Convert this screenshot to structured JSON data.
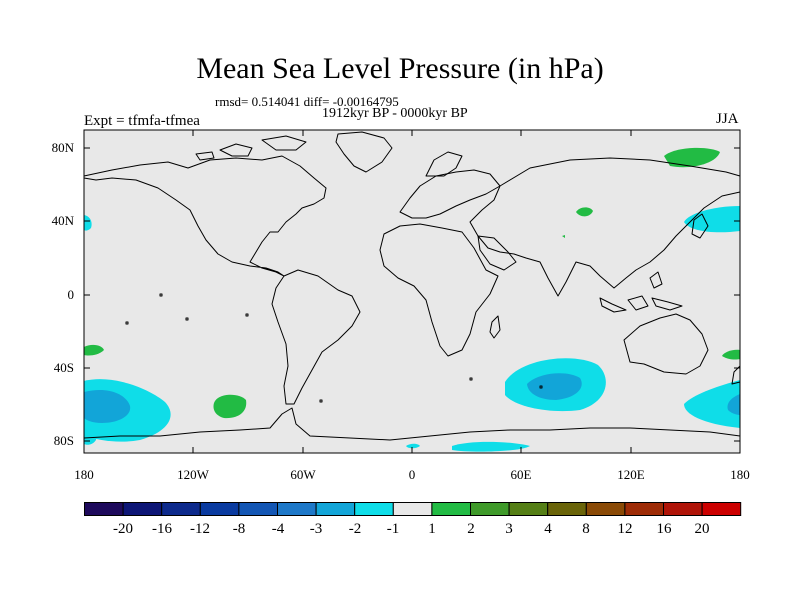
{
  "title": "Mean Sea Level Pressure (in hPa)",
  "stats_line": "rmsd= 0.514041 diff= -0.00164795",
  "period": "1912kyr BP - 0000kyr BP",
  "experiment": "Expt = tfmfa-tfmea",
  "season": "JJA",
  "lat_labels": [
    "80N",
    "40N",
    "0",
    "40S",
    "80S"
  ],
  "lon_labels": [
    "180",
    "120W",
    "60W",
    "0",
    "60E",
    "120E",
    "180"
  ],
  "colorbar": {
    "labels": [
      "-20",
      "-16",
      "-12",
      "-8",
      "-4",
      "-3",
      "-2",
      "-1",
      "1",
      "2",
      "3",
      "4",
      "8",
      "12",
      "16",
      "20"
    ],
    "colors": [
      "#1e0a5c",
      "#0d1676",
      "#0d2a8c",
      "#0a3ba0",
      "#1356b4",
      "#1e78c8",
      "#12a5d8",
      "#0fdde8",
      "#e8e8e8",
      "#22bb44",
      "#3f9a2a",
      "#557f16",
      "#6a6409",
      "#8a4a06",
      "#9e2c07",
      "#b01408",
      "#cc0000"
    ]
  },
  "colors": {
    "land_bg": "#e8e8e8",
    "light_blue": "#0fdde8",
    "mid_blue": "#12a5d8",
    "green": "#22bb44"
  }
}
